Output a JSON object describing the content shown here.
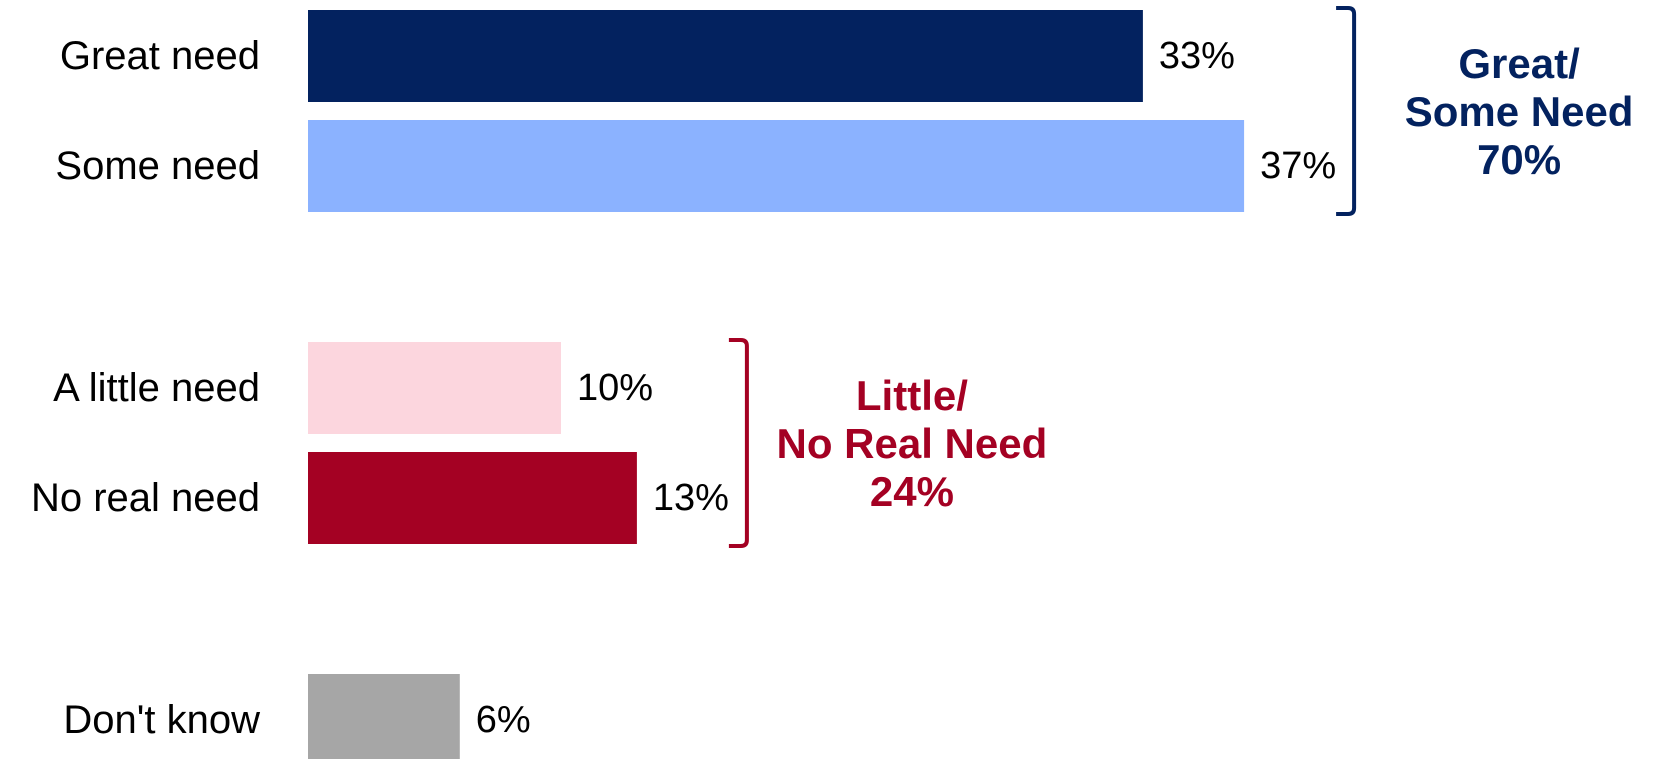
{
  "chart_data": {
    "type": "bar",
    "orientation": "horizontal",
    "categories": [
      "Great need",
      "Some need",
      "A little need",
      "No real need",
      "Don't know"
    ],
    "values": [
      33,
      37,
      10,
      13,
      6
    ],
    "value_labels": [
      "33%",
      "37%",
      "10%",
      "13%",
      "6%"
    ],
    "colors": [
      "#03225f",
      "#8bb2ff",
      "#fcd6de",
      "#a40123",
      "#a6a6a6"
    ],
    "xlim": [
      0,
      40
    ],
    "grid": false,
    "legend": "none",
    "groups": [
      {
        "members": [
          0,
          1
        ],
        "label_lines": [
          "Great/",
          "Some Need",
          "70%"
        ],
        "value": 70,
        "color": "#03225f"
      },
      {
        "members": [
          2,
          3
        ],
        "label_lines": [
          "Little/",
          "No Real Need",
          "24%"
        ],
        "value": 24,
        "color": "#a40123"
      }
    ]
  }
}
